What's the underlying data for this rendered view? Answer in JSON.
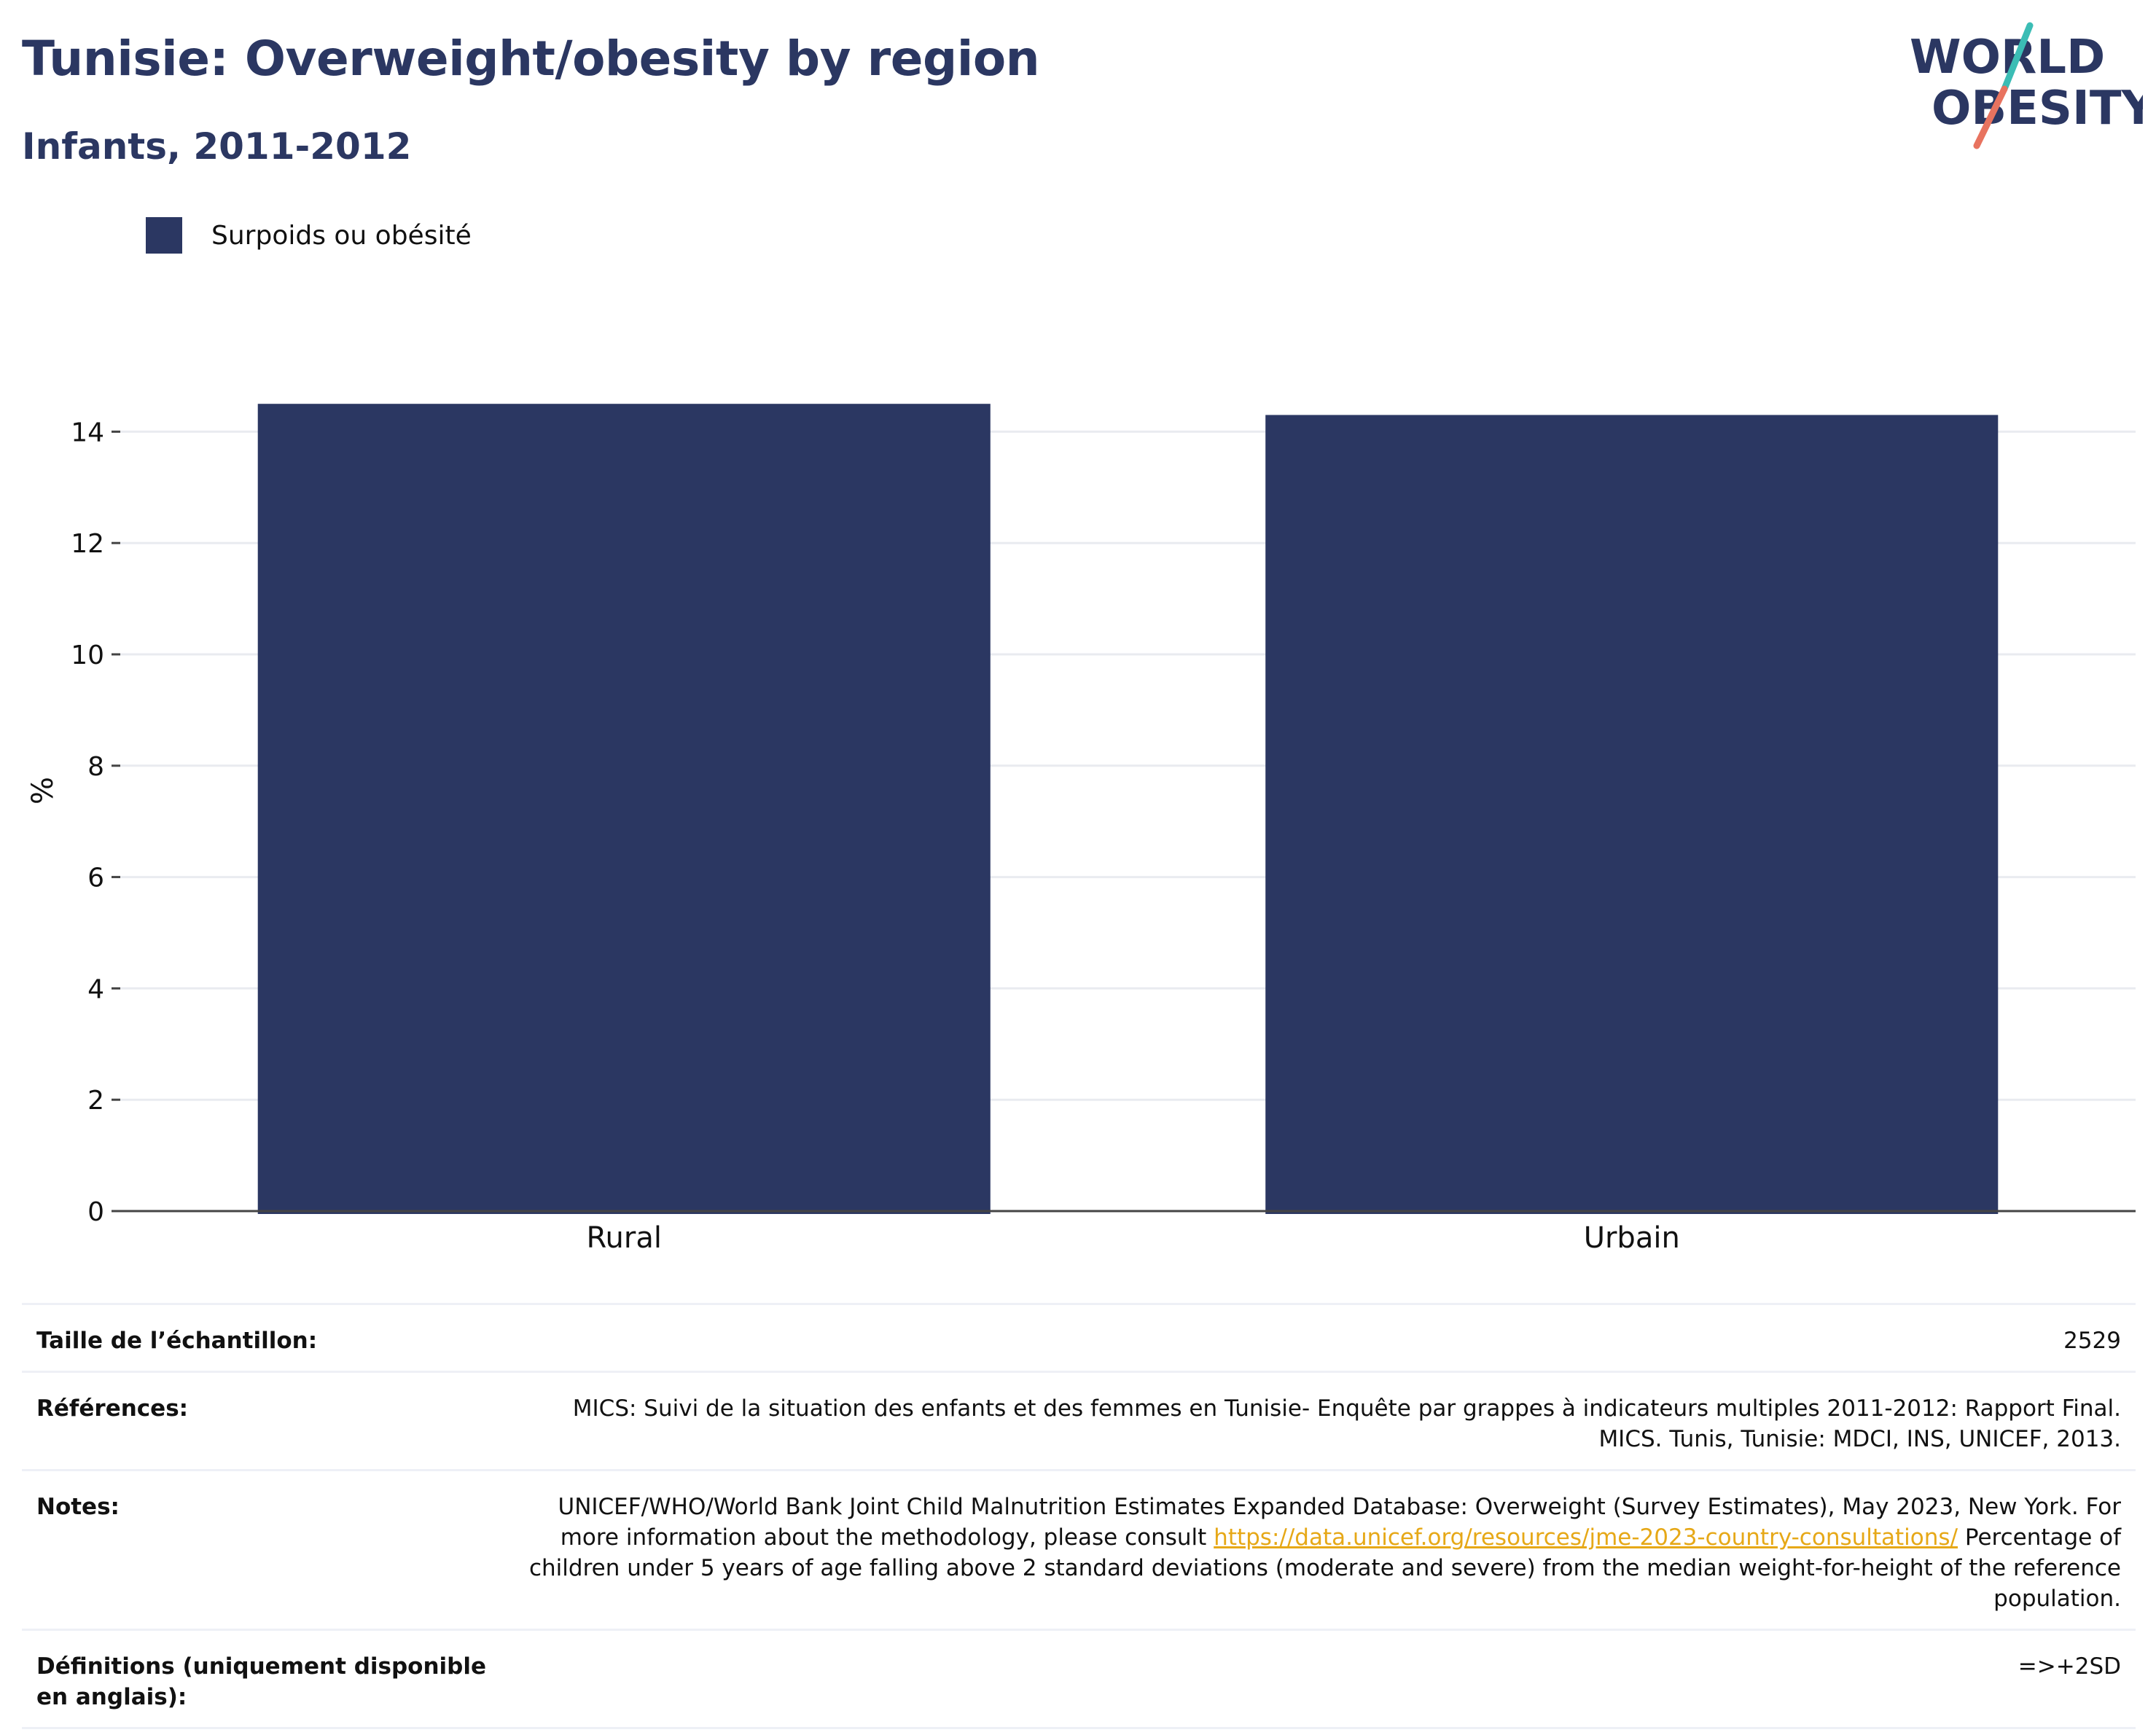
{
  "header": {
    "title": "Tunisie: Overweight/obesity by region",
    "subtitle": "Infants, 2011-2012"
  },
  "logo": {
    "line1": "WORLD",
    "line2": "OBESITY",
    "accent_teal": "#3bbdb5",
    "accent_coral": "#e8735f",
    "text_color": "#2b3762"
  },
  "chart_data": {
    "type": "bar",
    "title": "Tunisie: Overweight/obesity by region",
    "subtitle": "Infants, 2011-2012",
    "categories": [
      "Rural",
      "Urbain"
    ],
    "series": [
      {
        "name": "Surpoids ou obésité",
        "values": [
          14.5,
          14.3
        ],
        "color": "#2b3762"
      }
    ],
    "ylabel": "%",
    "xlabel": "",
    "ylim": [
      0,
      15
    ],
    "yticks": [
      0,
      2,
      4,
      6,
      8,
      10,
      12,
      14
    ],
    "grid": true,
    "legend_position": "top-left"
  },
  "meta": {
    "sample_label": "Taille de l’échantillon:",
    "sample_value": "2529",
    "references_label": "Références:",
    "references_value": "MICS: Suivi de la situation des enfants et des femmes en Tunisie- Enquête par grappes à indicateurs multiples 2011-2012: Rapport Final. MICS. Tunis, Tunisie: MDCI, INS, UNICEF, 2013.",
    "notes_label": "Notes:",
    "notes_before_link": "UNICEF/WHO/World Bank Joint Child Malnutrition Estimates Expanded Database: Overweight (Survey Estimates), May 2023, New York. For more information about the methodology, please consult ",
    "notes_link": "https://data.unicef.org/resources/jme-2023-country-consultations/",
    "notes_after_link": " Percentage of children under 5 years of age falling above 2 standard deviations (moderate and severe) from the median weight-for-height of the reference population.",
    "definitions_label": "Définitions (uniquement disponible en anglais):",
    "definitions_value": "=>+2SD"
  }
}
